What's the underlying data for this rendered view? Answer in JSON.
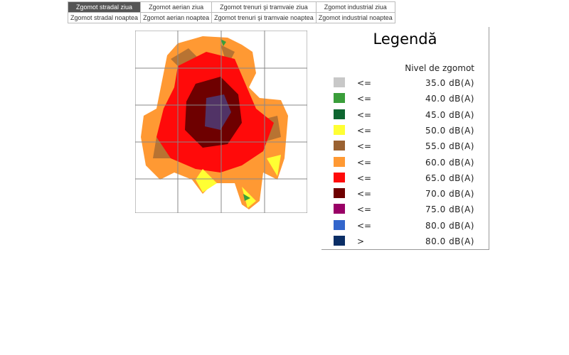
{
  "tabs": [
    [
      "Zgomot stradal ziua",
      "Zgomot aerian ziua",
      "Zgomot trenuri şi tramvaie ziua",
      "Zgomot industrial ziua"
    ],
    [
      "Zgomot stradal noaptea",
      "Zgomot aerian noaptea",
      "Zgomot trenuri şi tramvaie noaptea",
      "Zgomot industrial noaptea"
    ]
  ],
  "active_tab": "Zgomot stradal ziua",
  "legend": {
    "title": "Legendă",
    "header": "Nivel de zgomot",
    "items": [
      {
        "op": "<=",
        "value": "35.0 dB(A)",
        "color": "#c8c8c8"
      },
      {
        "op": "<=",
        "value": "40.0 dB(A)",
        "color": "#3a9e3a"
      },
      {
        "op": "<=",
        "value": "45.0 dB(A)",
        "color": "#0e6630"
      },
      {
        "op": "<=",
        "value": "50.0 dB(A)",
        "color": "#ffff33"
      },
      {
        "op": "<=",
        "value": "55.0 dB(A)",
        "color": "#9a6232"
      },
      {
        "op": "<=",
        "value": "60.0 dB(A)",
        "color": "#ff9933"
      },
      {
        "op": "<=",
        "value": "65.0 dB(A)",
        "color": "#ff0a0a"
      },
      {
        "op": "<=",
        "value": "70.0 dB(A)",
        "color": "#6e0000"
      },
      {
        "op": "<=",
        "value": "75.0 dB(A)",
        "color": "#990066"
      },
      {
        "op": "<=",
        "value": "80.0 dB(A)",
        "color": "#3366cc"
      },
      {
        "op": ">",
        "value": "80.0 dB(A)",
        "color": "#0a2e66"
      }
    ]
  }
}
